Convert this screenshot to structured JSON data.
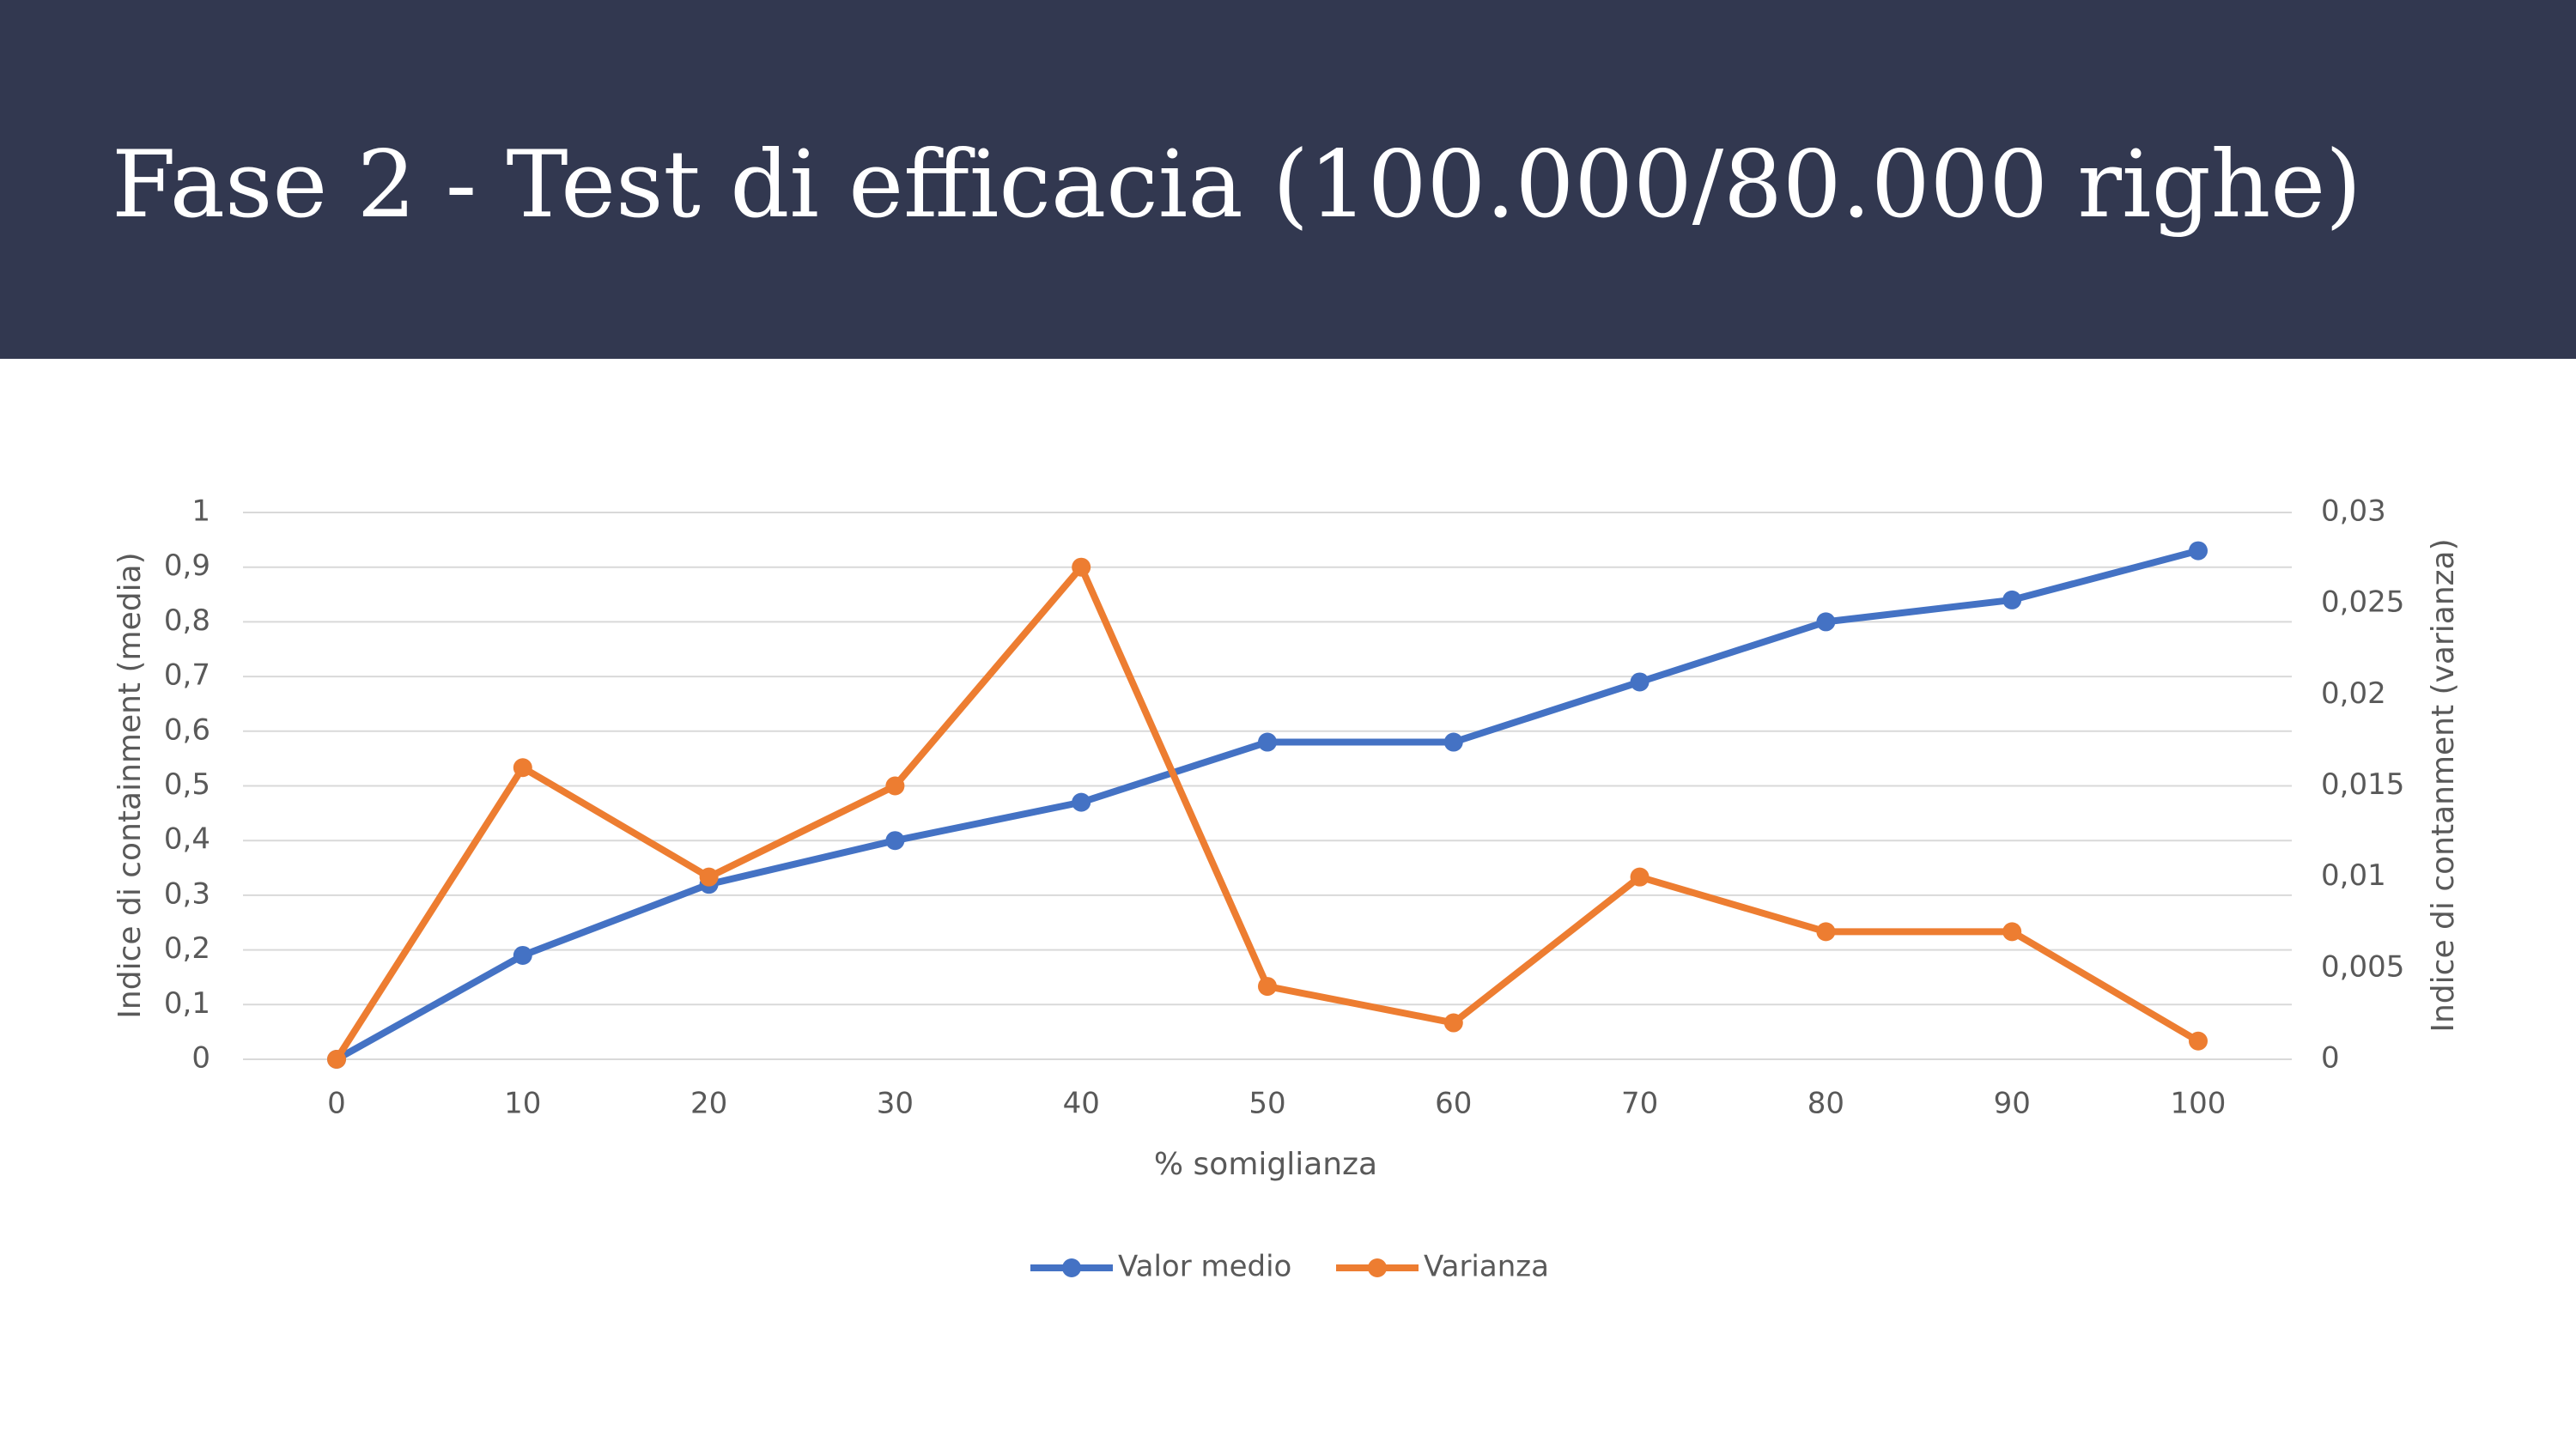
{
  "chart_data": {
    "type": "line",
    "title": "Fase 2 - Test di efficacia (100.000/80.000 righe)",
    "x_label": "% somiglianza",
    "y_label": "Indice di containment (media)",
    "y2_label": "Indice di contanment (varianza)",
    "categories": [
      0,
      10,
      20,
      30,
      40,
      50,
      60,
      70,
      80,
      90,
      100
    ],
    "series": [
      {
        "name": "Valor medio",
        "color": "#4472c4",
        "values": [
          0,
          0.19,
          0.32,
          0.4,
          0.47,
          0.58,
          0.58,
          0.69,
          0.8,
          0.84,
          0.93
        ]
      },
      {
        "name": "Varianza",
        "color": "#ed7d31",
        "axis": "y2",
        "values": [
          0,
          0.016,
          0.01,
          0.015,
          0.027,
          0.004,
          0.002,
          0.01,
          0.007,
          0.007,
          0.001
        ]
      }
    ],
    "ylim": [
      0,
      1
    ],
    "yticks": [
      0,
      {
        "value": 0.1,
        "label": "0,1"
      },
      {
        "value": 0.2,
        "label": "0,2"
      },
      {
        "value": 0.3,
        "label": "0,3"
      },
      {
        "value": 0.4,
        "label": "0,4"
      },
      {
        "value": 0.5,
        "label": "0,5"
      },
      {
        "value": 0.6,
        "label": "0,6"
      },
      {
        "value": 0.7,
        "label": "0,7"
      },
      {
        "value": 0.8,
        "label": "0,8"
      },
      {
        "value": 0.9,
        "label": "0,9"
      },
      1
    ],
    "y2lim": [
      0,
      0.03
    ],
    "y2ticks": [
      0,
      {
        "value": 0.005,
        "label": "0,005"
      },
      {
        "value": 0.01,
        "label": "0,01"
      },
      {
        "value": 0.015,
        "label": "0,015"
      },
      {
        "value": 0.02,
        "label": "0,02"
      },
      {
        "value": 0.025,
        "label": "0,025"
      },
      {
        "value": 0.03,
        "label": "0,03"
      }
    ],
    "grid": true,
    "legend": "bottom"
  }
}
